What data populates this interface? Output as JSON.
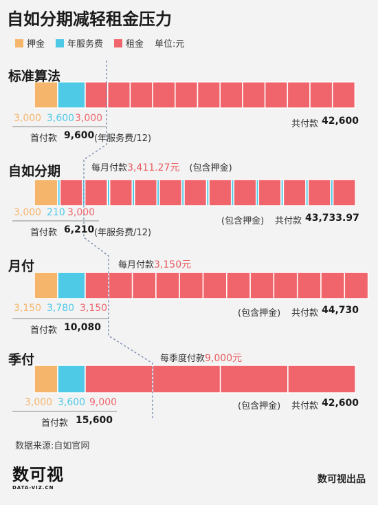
{
  "title": "自如分期减轻租金压力",
  "legend": {
    "deposit": "押金",
    "service": "年服务费",
    "rent": "租金",
    "unit": "单位:元"
  },
  "colors": {
    "deposit": "#f5b56b",
    "service": "#4ec9e6",
    "rent": "#f0656c",
    "dashed": "#7a8cb0"
  },
  "sections": [
    {
      "name": "标准算法",
      "deposit": "3,000",
      "service": "3,600",
      "rent": "3,000",
      "first_label": "首付款",
      "first_value": "9,600",
      "first_note": "(年服务费/12)",
      "total_label": "共付款",
      "total_value": "42,600",
      "total_prefix": "",
      "monthly": null
    },
    {
      "name": "自如分期",
      "deposit": "3,000",
      "service": "210",
      "rent": "3,000",
      "first_label": "首付款",
      "first_value": "6,210",
      "first_note": "(年服务费/12)",
      "total_label": "共付款",
      "total_value": "43,733.97",
      "total_prefix": "(包含押金)",
      "monthly": {
        "prefix": "每月付款",
        "value": "3,411.27元",
        "suffix": "(包含押金)"
      }
    },
    {
      "name": "月付",
      "deposit": "3,150",
      "service": "3,780",
      "rent": "3,150",
      "first_label": "首付款",
      "first_value": "10,080",
      "first_note": "",
      "total_label": "共付款",
      "total_value": "44,730",
      "total_prefix": "(包含押金)",
      "monthly": {
        "prefix": "每月付款",
        "value": "3,150元",
        "suffix": ""
      }
    },
    {
      "name": "季付",
      "deposit": "3,000",
      "service": "3,600",
      "rent": "9,000",
      "first_label": "首付款",
      "first_value": "15,600",
      "first_note": "",
      "total_label": "共付款",
      "total_value": "42,600",
      "total_prefix": "(包含押金)",
      "monthly": {
        "prefix": "每季度付款",
        "value": "9,000元",
        "suffix": ""
      }
    }
  ],
  "chart_data": {
    "type": "bar",
    "title": "自如分期减轻租金压力",
    "unit": "单位:元",
    "categories": [
      "标准算法",
      "自如分期",
      "月付",
      "季付"
    ],
    "segment_types": [
      "押金",
      "年服务费",
      "租金"
    ],
    "segments": [
      {
        "category": "标准算法",
        "deposit": 3000,
        "service_fee": 3600,
        "rent_count": 12,
        "rent_each": 3000,
        "total": 42600,
        "first_payment": 9600
      },
      {
        "category": "自如分期",
        "deposit": 3000,
        "service_fee_blocks": 12,
        "service_fee_each": 210,
        "rent_count": 12,
        "rent_each": 3000,
        "total": 43733.97,
        "first_payment": 6210,
        "monthly_payment": 3411.27
      },
      {
        "category": "月付",
        "deposit": 3150,
        "service_fee": 3780,
        "rent_count": 12,
        "rent_each": 3150,
        "total": 44730,
        "first_payment": 10080,
        "monthly_payment": 3150
      },
      {
        "category": "季付",
        "deposit": 3000,
        "service_fee": 3600,
        "rent_count": 4,
        "rent_each": 9000,
        "total": 42600,
        "first_payment": 15600,
        "quarterly_payment": 9000
      }
    ]
  },
  "footer": {
    "source": "数据来源:自如官网",
    "brand": "数可视出品",
    "logo_text": "数可视",
    "logo_sub": "DATA-VIZ.CN"
  }
}
